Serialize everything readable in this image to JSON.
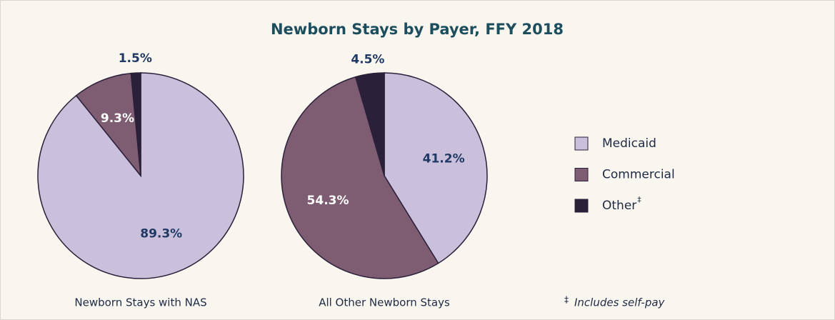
{
  "title": "Newborn Stays by Payer, FFY 2018",
  "chart_data": [
    {
      "type": "pie",
      "label": "Newborn Stays with NAS",
      "categories": [
        "Medicaid",
        "Commercial",
        "Other"
      ],
      "values": [
        89.3,
        9.3,
        1.5
      ],
      "value_labels": [
        "89.3%",
        "9.3%",
        "1.5%"
      ],
      "colors": [
        "#cbc0dc",
        "#7e5c72",
        "#2b2039"
      ]
    },
    {
      "type": "pie",
      "label": "All Other Newborn Stays",
      "categories": [
        "Medicaid",
        "Commercial",
        "Other"
      ],
      "values": [
        41.2,
        54.3,
        4.5
      ],
      "value_labels": [
        "41.2%",
        "54.3%",
        "4.5%"
      ],
      "colors": [
        "#cbc0dc",
        "#7e5c72",
        "#2b2039"
      ]
    }
  ],
  "footnote": {
    "symbol": "‡",
    "text": "Includes self-pay"
  }
}
